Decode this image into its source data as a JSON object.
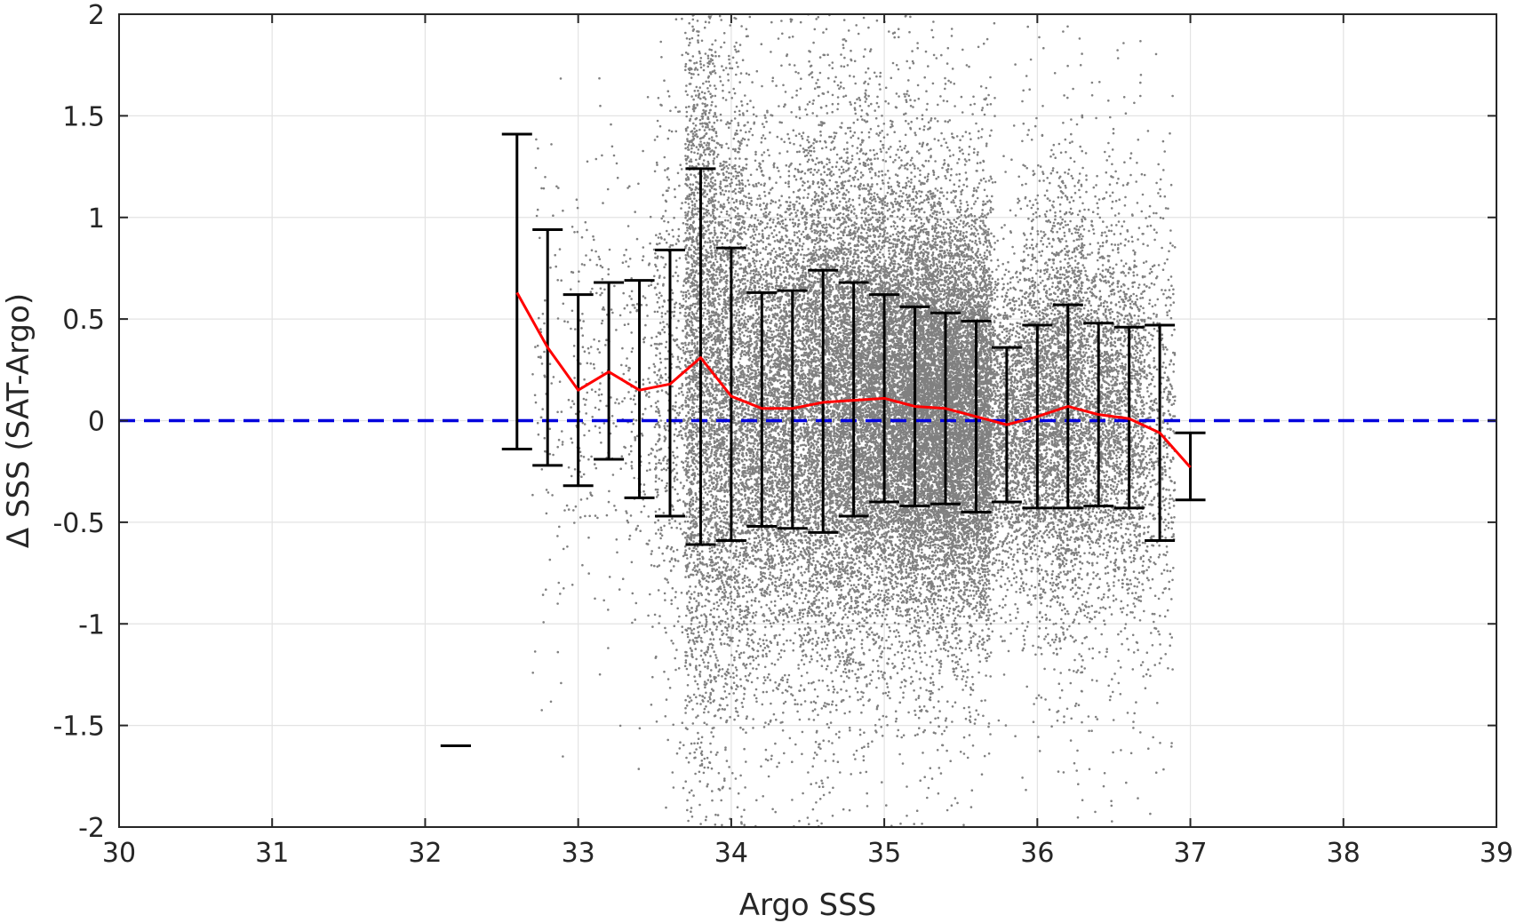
{
  "chart_data": {
    "type": "scatter",
    "title": "",
    "xlabel": "Argo SSS",
    "ylabel": "Δ SSS (SAT-Argo)",
    "xlim": [
      30,
      39
    ],
    "ylim": [
      -2,
      2
    ],
    "xticks": [
      30,
      31,
      32,
      33,
      34,
      35,
      36,
      37,
      38,
      39
    ],
    "yticks": [
      -2,
      -1.5,
      -1,
      -0.5,
      0,
      0.5,
      1,
      1.5,
      2
    ],
    "ytick_labels": [
      "-2",
      "-1.5",
      "-1",
      "-0.5",
      "0",
      "0.5",
      "1",
      "1.5",
      "2"
    ],
    "grid": true,
    "scatter_color": "#808080",
    "mean_line_color": "#ff0000",
    "errorbar_color": "#000000",
    "zero_line_color": "#0000dd",
    "zero_line_y": 0,
    "bins": {
      "x": [
        32.2,
        32.6,
        32.8,
        33.0,
        33.2,
        33.4,
        33.6,
        33.8,
        34.0,
        34.2,
        34.4,
        34.6,
        34.8,
        35.0,
        35.2,
        35.4,
        35.6,
        35.8,
        36.0,
        36.2,
        36.4,
        36.6,
        36.8,
        37.0
      ],
      "mean": [
        -1.6,
        0.63,
        0.36,
        0.15,
        0.24,
        0.15,
        0.18,
        0.31,
        0.12,
        0.06,
        0.06,
        0.09,
        0.1,
        0.11,
        0.07,
        0.06,
        0.02,
        -0.02,
        0.02,
        0.07,
        0.03,
        0.01,
        -0.06,
        -0.23
      ],
      "upper": [
        -1.6,
        1.41,
        0.94,
        0.62,
        0.68,
        0.69,
        0.84,
        1.24,
        0.85,
        0.63,
        0.64,
        0.74,
        0.68,
        0.62,
        0.56,
        0.53,
        0.49,
        0.36,
        0.47,
        0.57,
        0.48,
        0.46,
        0.47,
        -0.06
      ],
      "lower": [
        -1.6,
        -0.14,
        -0.22,
        -0.32,
        -0.19,
        -0.38,
        -0.47,
        -0.61,
        -0.59,
        -0.52,
        -0.53,
        -0.55,
        -0.47,
        -0.4,
        -0.42,
        -0.41,
        -0.45,
        -0.4,
        -0.43,
        -0.43,
        -0.42,
        -0.43,
        -0.59,
        -0.39
      ]
    },
    "scatter_density": {
      "x_range": [
        32.6,
        37.0
      ],
      "centers": [
        32.8,
        33.0,
        33.2,
        33.4,
        33.6,
        33.8,
        34.0,
        34.2,
        34.4,
        34.6,
        34.8,
        35.0,
        35.2,
        35.4,
        35.6,
        35.8,
        36.0,
        36.2,
        36.4,
        36.6,
        36.8
      ],
      "relative_counts": [
        3,
        4,
        4,
        6,
        18,
        90,
        75,
        70,
        75,
        95,
        110,
        120,
        140,
        150,
        130,
        45,
        55,
        70,
        45,
        40,
        18
      ]
    }
  }
}
